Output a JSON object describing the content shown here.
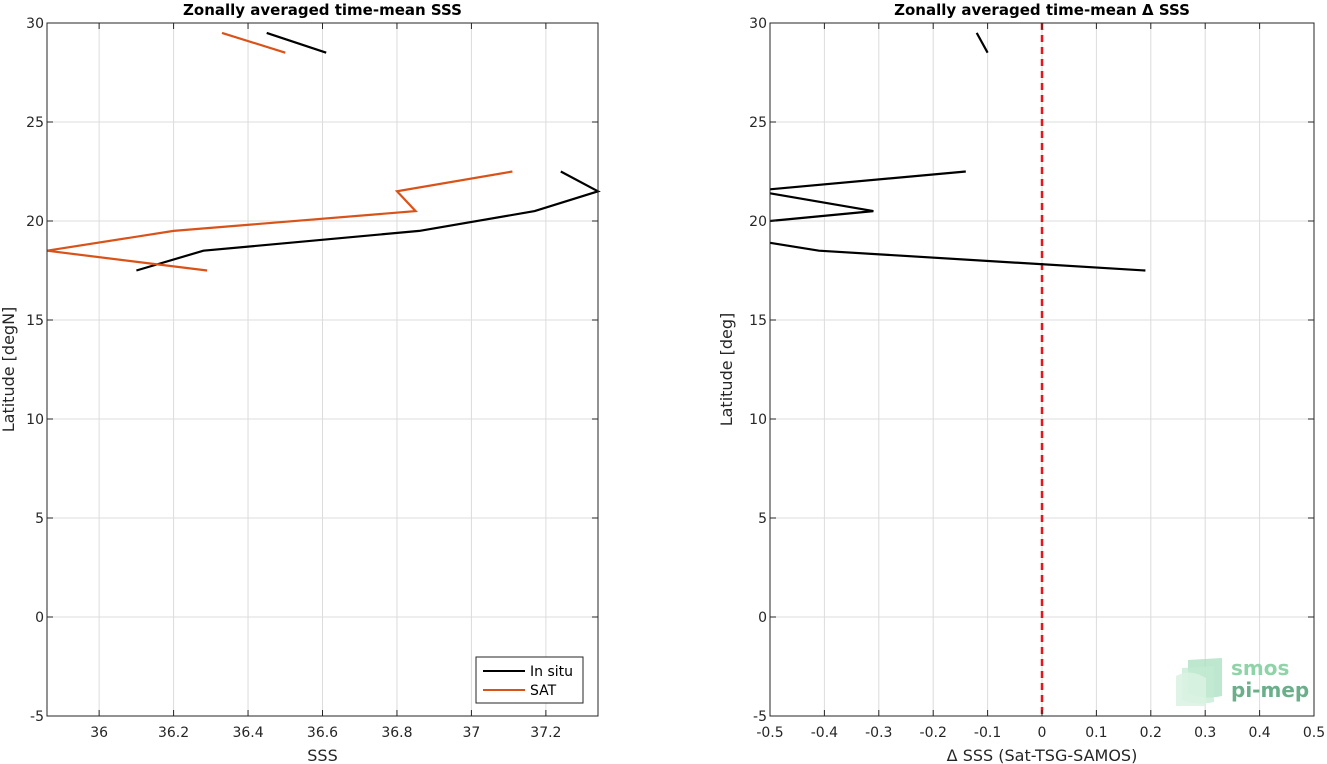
{
  "chart_data": [
    {
      "type": "line",
      "title": "Zonally averaged time-mean SSS",
      "xlabel": "SSS",
      "ylabel": "Latitude [degN]",
      "xlim": [
        35.86,
        37.34
      ],
      "ylim": [
        -5,
        30
      ],
      "xticks": [
        "36",
        "36.2",
        "36.4",
        "36.6",
        "36.8",
        "37",
        "37.2"
      ],
      "yticks": [
        "-5",
        "0",
        "5",
        "10",
        "15",
        "20",
        "25",
        "30"
      ],
      "grid": true,
      "legend_position": "bottom-right",
      "series": [
        {
          "name": "In situ",
          "color": "#000000",
          "segments": [
            [
              [
                36.1,
                17.5
              ],
              [
                36.28,
                18.5
              ],
              [
                36.86,
                19.5
              ],
              [
                37.17,
                20.5
              ],
              [
                37.34,
                21.5
              ],
              [
                37.24,
                22.5
              ]
            ],
            [
              [
                36.45,
                29.5
              ],
              [
                36.61,
                28.5
              ]
            ]
          ]
        },
        {
          "name": "SAT",
          "color": "#d95319",
          "segments": [
            [
              [
                36.29,
                17.5
              ],
              [
                35.86,
                18.5
              ],
              [
                36.2,
                19.5
              ],
              [
                36.85,
                20.5
              ],
              [
                36.8,
                21.5
              ],
              [
                37.11,
                22.5
              ]
            ],
            [
              [
                36.33,
                29.5
              ],
              [
                36.5,
                28.5
              ]
            ]
          ]
        }
      ]
    },
    {
      "type": "line",
      "title": "Zonally averaged time-mean Δ SSS",
      "xlabel": "Δ SSS (Sat-TSG-SAMOS)",
      "ylabel": "Latitude [deg]",
      "xlim": [
        -0.5,
        0.5
      ],
      "ylim": [
        -5,
        30
      ],
      "xticks": [
        "-0.5",
        "-0.4",
        "-0.3",
        "-0.2",
        "-0.1",
        "0",
        "0.1",
        "0.2",
        "0.3",
        "0.4",
        "0.5"
      ],
      "yticks": [
        "-5",
        "0",
        "5",
        "10",
        "15",
        "20",
        "25",
        "30"
      ],
      "grid": true,
      "reference_line": {
        "x": 0,
        "color": "#e8141e",
        "style": "dashed"
      },
      "series": [
        {
          "color": "#000000",
          "segments": [
            [
              [
                0.19,
                17.5
              ],
              [
                -0.41,
                18.5
              ],
              [
                -0.5,
                18.9
              ]
            ],
            [
              [
                -0.5,
                20.0
              ],
              [
                -0.31,
                20.5
              ],
              [
                -0.5,
                21.4
              ]
            ],
            [
              [
                -0.5,
                21.6
              ],
              [
                -0.14,
                22.5
              ]
            ],
            [
              [
                -0.12,
                29.5
              ],
              [
                -0.1,
                28.5
              ]
            ]
          ]
        }
      ]
    }
  ],
  "logo": {
    "line1": "smos",
    "line2": "pi-mep"
  }
}
